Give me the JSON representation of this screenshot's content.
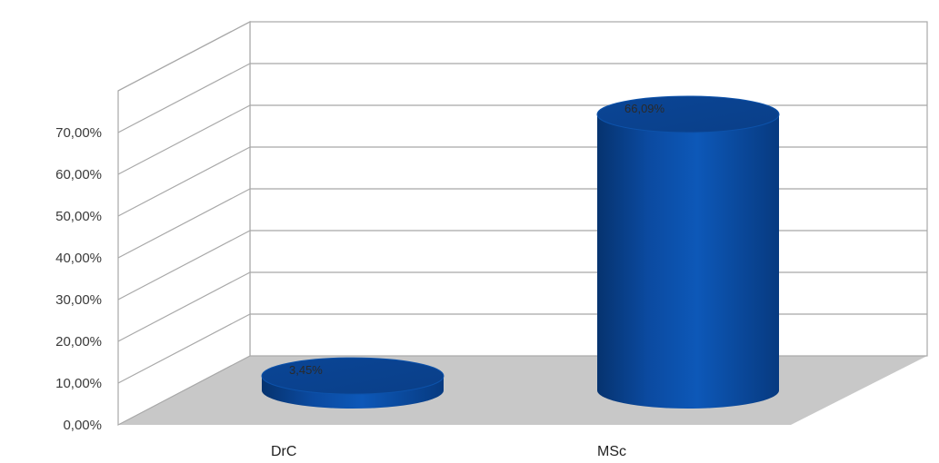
{
  "chart_data": {
    "type": "bar",
    "categories": [
      "DrC",
      "MSc"
    ],
    "values": [
      3.45,
      66.09
    ],
    "data_labels": [
      "3,45%",
      "66,09%"
    ],
    "yticks": [
      "0,00%",
      "10,00%",
      "20,00%",
      "30,00%",
      "40,00%",
      "50,00%",
      "60,00%",
      "70,00%"
    ],
    "ylim": [
      0,
      80
    ],
    "grid": true,
    "style": "3d-cylinder",
    "bar_color": "#0b4aa0",
    "floor_color": "#c8c8c8",
    "grid_color": "#a8a8a8"
  }
}
